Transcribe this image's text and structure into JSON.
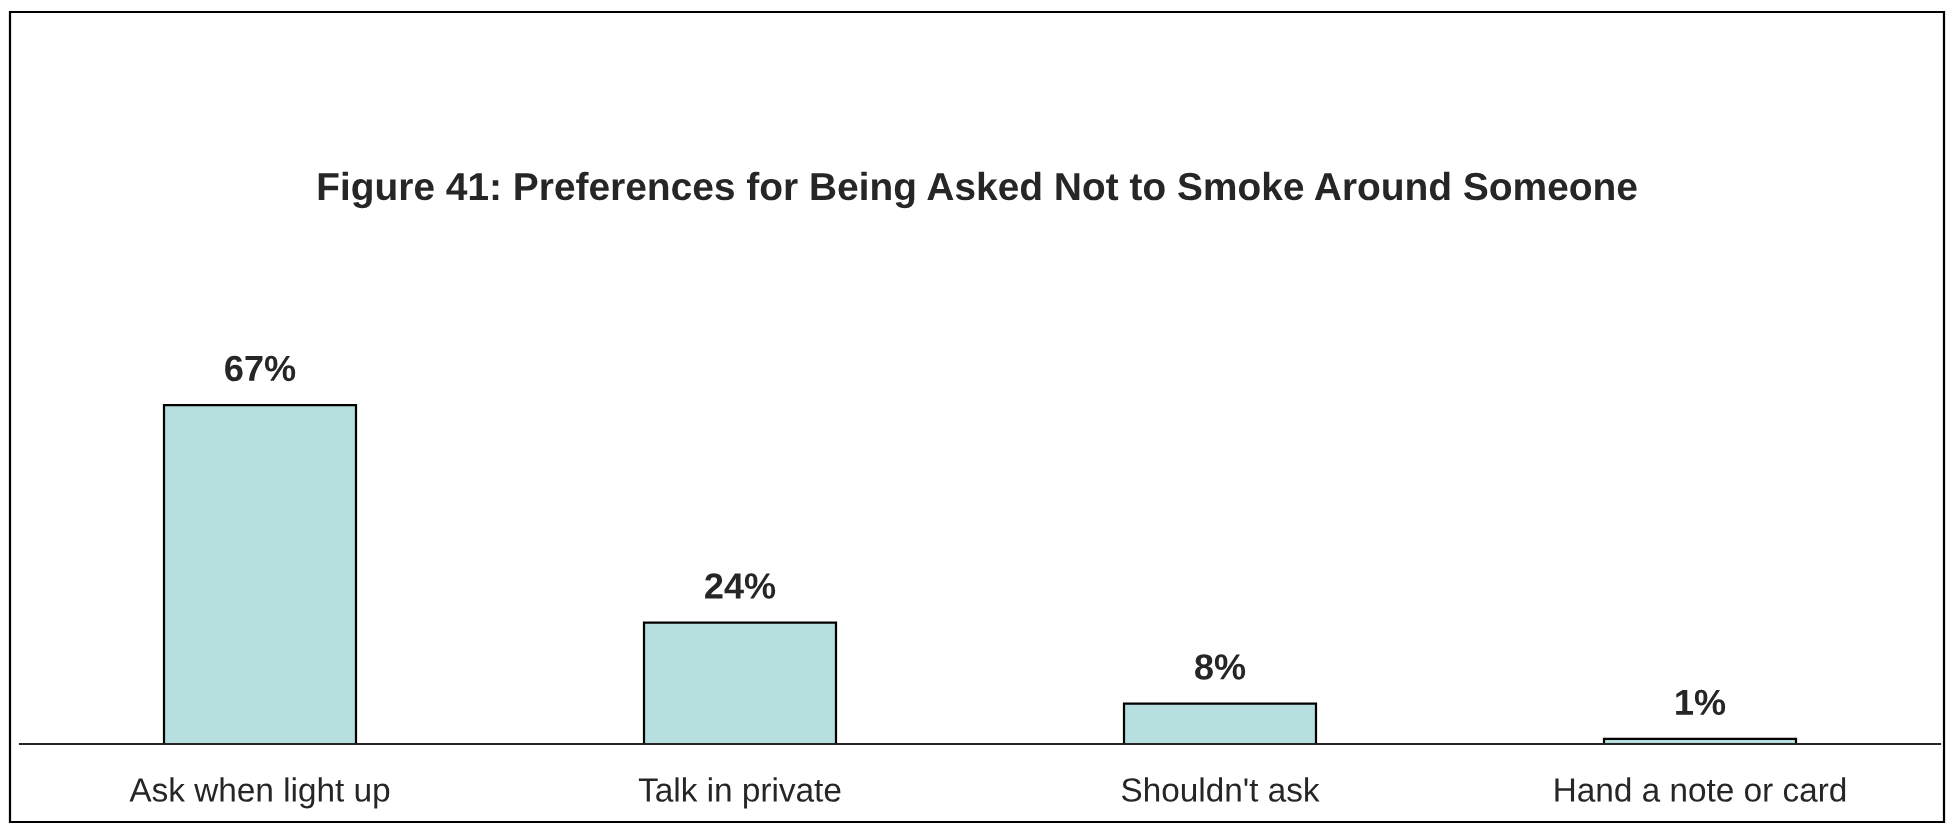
{
  "chart_data": {
    "type": "bar",
    "title": "Figure 41: Preferences for Being Asked Not to Smoke Around Someone",
    "categories": [
      "Ask when light up",
      "Talk in private",
      "Shouldn't ask",
      "Hand a note or card"
    ],
    "values": [
      67,
      24,
      8,
      1
    ],
    "value_labels": [
      "67%",
      "24%",
      "8%",
      "1%"
    ],
    "color": "#b7dfe0",
    "grid": false,
    "legend": false
  }
}
